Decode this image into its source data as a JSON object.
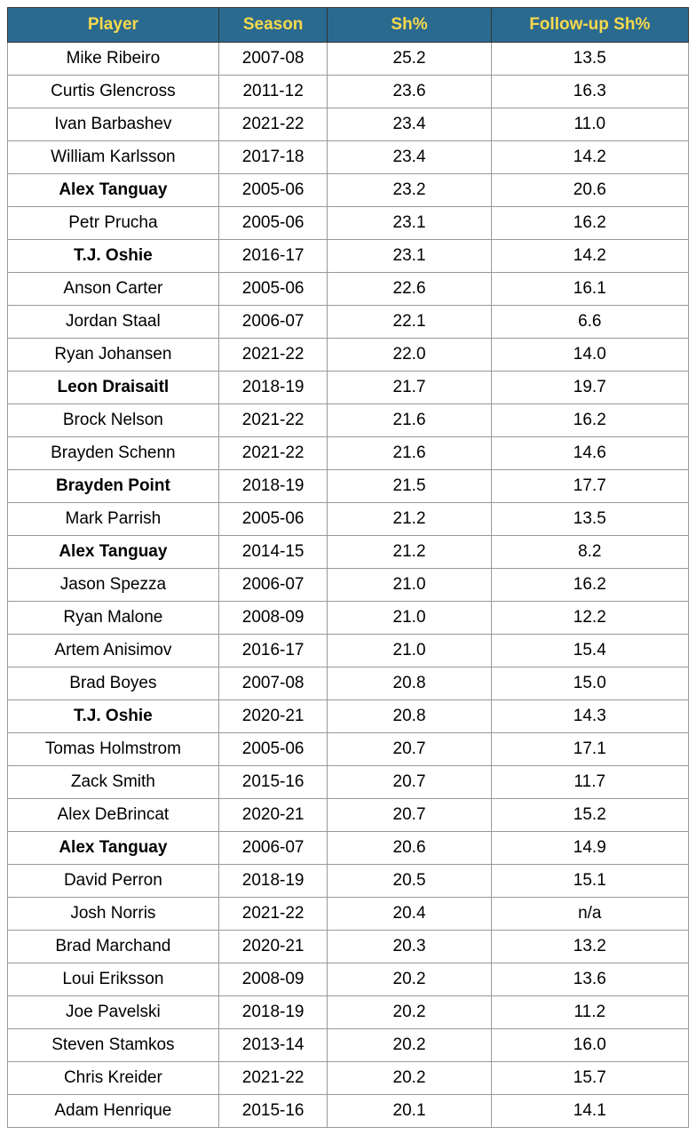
{
  "table": {
    "header_bg": "#2b6a8f",
    "header_text_color": "#f7d94c",
    "border_color": "#333",
    "cell_border_color": "#999",
    "background_color": "#ffffff",
    "font_size": 19,
    "columns": [
      {
        "label": "Player",
        "width": "31%"
      },
      {
        "label": "Season",
        "width": "16%"
      },
      {
        "label": "Sh%",
        "width": "24%"
      },
      {
        "label": "Follow-up Sh%",
        "width": "29%"
      }
    ],
    "rows": [
      {
        "player": "Mike Ribeiro",
        "season": "2007-08",
        "sh": "25.2",
        "follow": "13.5",
        "bold": false
      },
      {
        "player": "Curtis Glencross",
        "season": "2011-12",
        "sh": "23.6",
        "follow": "16.3",
        "bold": false
      },
      {
        "player": "Ivan Barbashev",
        "season": "2021-22",
        "sh": "23.4",
        "follow": "11.0",
        "bold": false
      },
      {
        "player": "William Karlsson",
        "season": "2017-18",
        "sh": "23.4",
        "follow": "14.2",
        "bold": false
      },
      {
        "player": "Alex Tanguay",
        "season": "2005-06",
        "sh": "23.2",
        "follow": "20.6",
        "bold": true
      },
      {
        "player": "Petr Prucha",
        "season": "2005-06",
        "sh": "23.1",
        "follow": "16.2",
        "bold": false
      },
      {
        "player": "T.J. Oshie",
        "season": "2016-17",
        "sh": "23.1",
        "follow": "14.2",
        "bold": true
      },
      {
        "player": "Anson Carter",
        "season": "2005-06",
        "sh": "22.6",
        "follow": "16.1",
        "bold": false
      },
      {
        "player": "Jordan Staal",
        "season": "2006-07",
        "sh": "22.1",
        "follow": "6.6",
        "bold": false
      },
      {
        "player": "Ryan Johansen",
        "season": "2021-22",
        "sh": "22.0",
        "follow": "14.0",
        "bold": false
      },
      {
        "player": "Leon Draisaitl",
        "season": "2018-19",
        "sh": "21.7",
        "follow": "19.7",
        "bold": true
      },
      {
        "player": "Brock Nelson",
        "season": "2021-22",
        "sh": "21.6",
        "follow": "16.2",
        "bold": false
      },
      {
        "player": "Brayden Schenn",
        "season": "2021-22",
        "sh": "21.6",
        "follow": "14.6",
        "bold": false
      },
      {
        "player": "Brayden Point",
        "season": "2018-19",
        "sh": "21.5",
        "follow": "17.7",
        "bold": true
      },
      {
        "player": "Mark Parrish",
        "season": "2005-06",
        "sh": "21.2",
        "follow": "13.5",
        "bold": false
      },
      {
        "player": "Alex Tanguay",
        "season": "2014-15",
        "sh": "21.2",
        "follow": "8.2",
        "bold": true
      },
      {
        "player": "Jason Spezza",
        "season": "2006-07",
        "sh": "21.0",
        "follow": "16.2",
        "bold": false
      },
      {
        "player": "Ryan Malone",
        "season": "2008-09",
        "sh": "21.0",
        "follow": "12.2",
        "bold": false
      },
      {
        "player": "Artem Anisimov",
        "season": "2016-17",
        "sh": "21.0",
        "follow": "15.4",
        "bold": false
      },
      {
        "player": "Brad Boyes",
        "season": "2007-08",
        "sh": "20.8",
        "follow": "15.0",
        "bold": false
      },
      {
        "player": "T.J. Oshie",
        "season": "2020-21",
        "sh": "20.8",
        "follow": "14.3",
        "bold": true
      },
      {
        "player": "Tomas Holmstrom",
        "season": "2005-06",
        "sh": "20.7",
        "follow": "17.1",
        "bold": false
      },
      {
        "player": "Zack Smith",
        "season": "2015-16",
        "sh": "20.7",
        "follow": "11.7",
        "bold": false
      },
      {
        "player": "Alex DeBrincat",
        "season": "2020-21",
        "sh": "20.7",
        "follow": "15.2",
        "bold": false
      },
      {
        "player": "Alex Tanguay",
        "season": "2006-07",
        "sh": "20.6",
        "follow": "14.9",
        "bold": true
      },
      {
        "player": "David Perron",
        "season": "2018-19",
        "sh": "20.5",
        "follow": "15.1",
        "bold": false
      },
      {
        "player": "Josh Norris",
        "season": "2021-22",
        "sh": "20.4",
        "follow": "n/a",
        "bold": false
      },
      {
        "player": "Brad Marchand",
        "season": "2020-21",
        "sh": "20.3",
        "follow": "13.2",
        "bold": false
      },
      {
        "player": "Loui Eriksson",
        "season": "2008-09",
        "sh": "20.2",
        "follow": "13.6",
        "bold": false
      },
      {
        "player": "Joe Pavelski",
        "season": "2018-19",
        "sh": "20.2",
        "follow": "11.2",
        "bold": false
      },
      {
        "player": "Steven Stamkos",
        "season": "2013-14",
        "sh": "20.2",
        "follow": "16.0",
        "bold": false
      },
      {
        "player": "Chris Kreider",
        "season": "2021-22",
        "sh": "20.2",
        "follow": "15.7",
        "bold": false
      },
      {
        "player": "Adam Henrique",
        "season": "2015-16",
        "sh": "20.1",
        "follow": "14.1",
        "bold": false
      }
    ]
  }
}
